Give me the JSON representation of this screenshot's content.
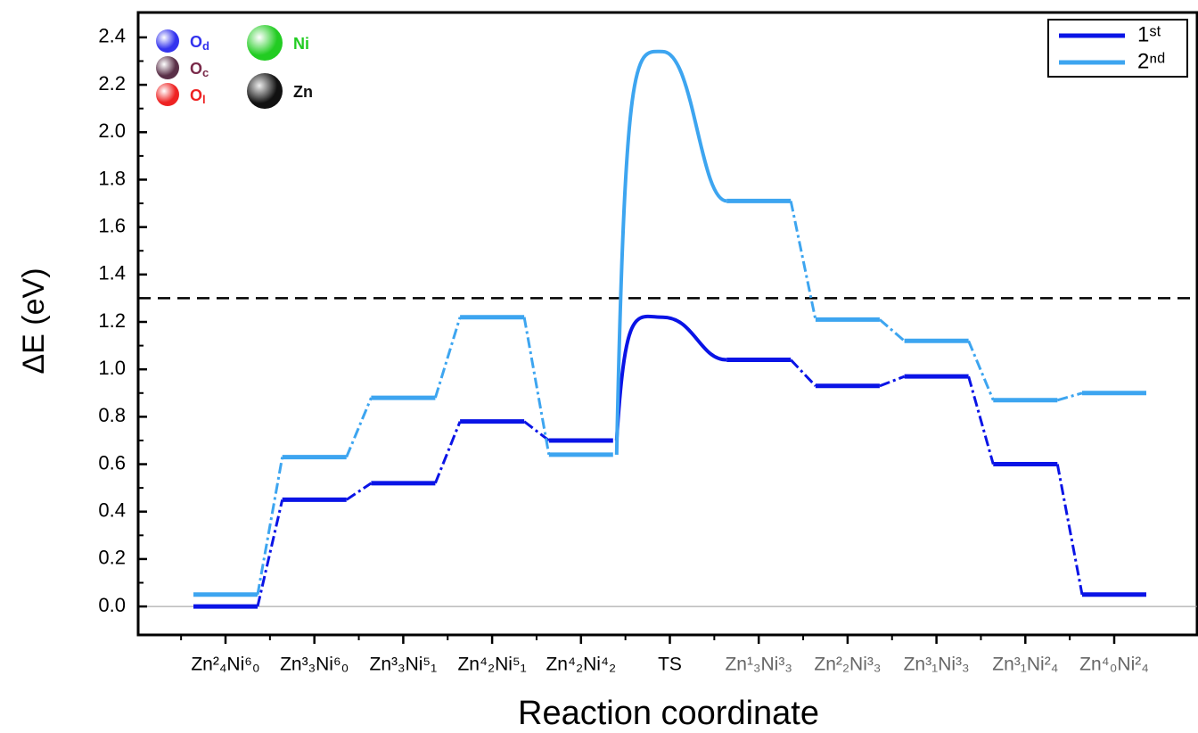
{
  "chart_data": {
    "type": "energy-profile",
    "y_axis_label": "ΔE (eV)",
    "x_axis_label": "Reaction coordinate",
    "categories": [
      "Zn²₄Ni⁶₀",
      "Zn³₃Ni⁶₀",
      "Zn³₃Ni⁵₁",
      "Zn⁴₂Ni⁵₁",
      "Zn⁴₂Ni⁴₂",
      "TS",
      "Zn¹₃Ni³₃",
      "Zn²₂Ni³₃",
      "Zn³₁Ni³₃",
      "Zn³₁Ni²₄",
      "Zn⁴₀Ni²₄"
    ],
    "category_colors": [
      "#000000",
      "#000000",
      "#000000",
      "#000000",
      "#000000",
      "#000000",
      "#666666",
      "#666666",
      "#666666",
      "#666666",
      "#666666"
    ],
    "series": [
      {
        "name": "1ˢᵗ",
        "color": "#0a14e6",
        "values": [
          0.0,
          0.45,
          0.52,
          0.78,
          0.7,
          1.22,
          1.04,
          0.93,
          0.97,
          0.6,
          0.05
        ]
      },
      {
        "name": "2ⁿᵈ",
        "color": "#3da5f0",
        "values": [
          0.05,
          0.63,
          0.88,
          1.22,
          0.64,
          2.34,
          1.71,
          1.21,
          1.12,
          0.87,
          0.9
        ]
      }
    ],
    "reference_line": 1.3,
    "ylim": [
      -0.12,
      2.505
    ],
    "yticks": [
      {
        "value": 0,
        "label": "0.0"
      },
      0.2,
      0.4,
      0.6,
      0.8,
      {
        "value": 1,
        "label": "1.0"
      },
      1.2,
      1.4,
      1.6,
      1.8,
      {
        "value": 2,
        "label": "2.0"
      },
      2.2,
      2.4
    ],
    "legend": "upper right",
    "atom_legend": [
      {
        "symbol": "O",
        "sub": "d",
        "color": "#3333ee"
      },
      {
        "symbol": "O",
        "sub": "c",
        "color": "#7a2a4a"
      },
      {
        "symbol": "O",
        "sub": "l",
        "color": "#ee2222"
      },
      {
        "symbol": "Ni",
        "sub": "",
        "color": "#22cc22"
      },
      {
        "symbol": "Zn",
        "sub": "",
        "color": "#111111"
      }
    ]
  }
}
